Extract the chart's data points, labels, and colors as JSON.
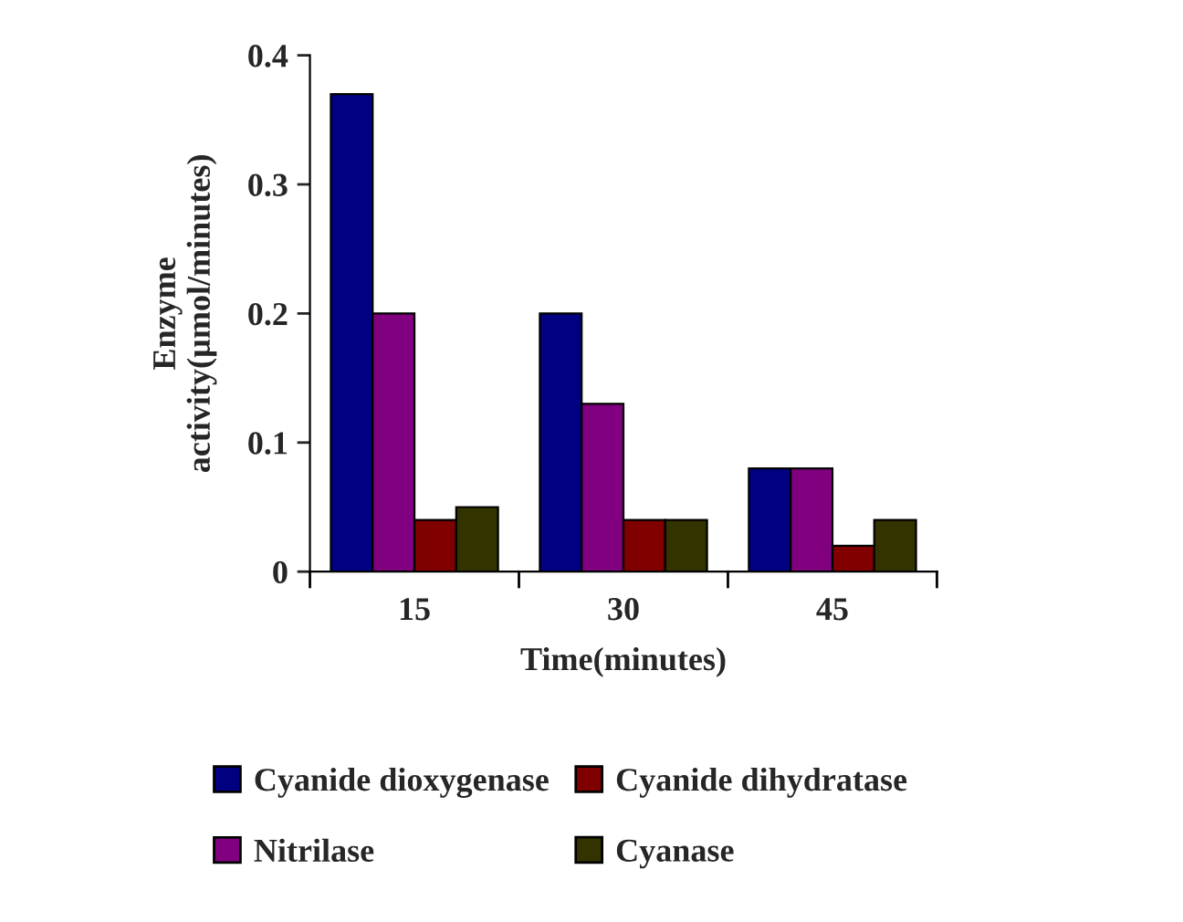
{
  "chart_data": {
    "type": "bar",
    "xlabel": "Time(minutes)",
    "ylabel": "Enzyme\nactivity(µmol/minutes)",
    "categories": [
      "15",
      "30",
      "45"
    ],
    "series": [
      {
        "name": "Cyanide dioxygenase",
        "color": "#000080",
        "values": [
          0.37,
          0.2,
          0.08
        ]
      },
      {
        "name": "Nitrilase",
        "color": "#800080",
        "values": [
          0.2,
          0.13,
          0.08
        ]
      },
      {
        "name": "Cyanide dihydratase",
        "color": "#800000",
        "values": [
          0.04,
          0.04,
          0.02
        ]
      },
      {
        "name": "Cyanase",
        "color": "#333300",
        "values": [
          0.05,
          0.04,
          0.04
        ]
      }
    ],
    "ylim": [
      0,
      0.4
    ],
    "yticks": [
      0,
      0.1,
      0.2,
      0.3,
      0.4
    ],
    "grid": false,
    "legend": "bottom"
  }
}
